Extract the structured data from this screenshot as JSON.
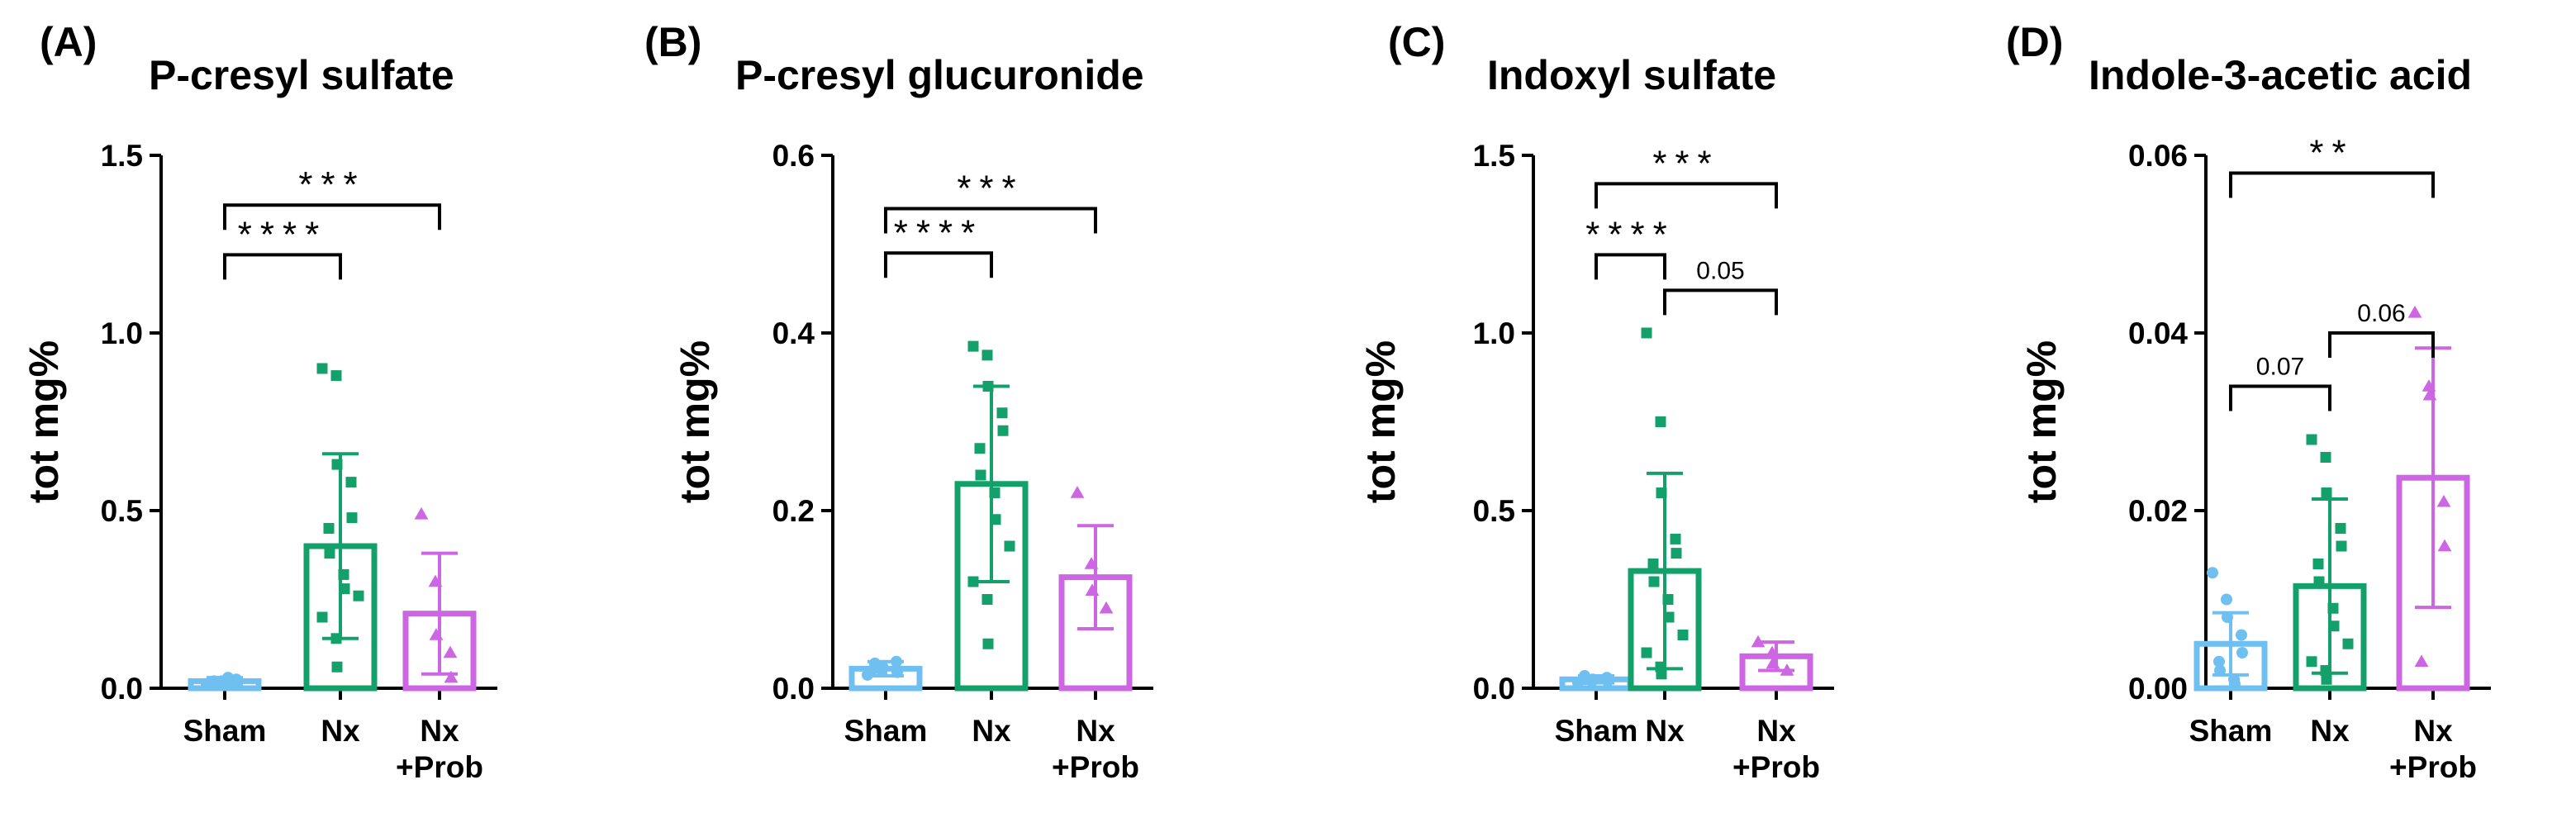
{
  "colors": {
    "sham": "#6fbff0",
    "nx": "#14a06a",
    "prob": "#cc66e3",
    "axis": "#000000"
  },
  "chart_data": [
    {
      "type": "bar",
      "panel": "(A)",
      "title": "P-cresyl sulfate",
      "ylabel": "tot mg%",
      "xlabel": "",
      "ylim": [
        0,
        1.5
      ],
      "yticks": [
        "0.0",
        "0.5",
        "1.0",
        "1.5"
      ],
      "ytick_values": [
        0,
        0.5,
        1.0,
        1.5
      ],
      "categories": [
        [
          "Sham"
        ],
        [
          "Nx"
        ],
        [
          "Nx",
          "+Prob"
        ]
      ],
      "marker_shapes": [
        "circle",
        "square",
        "triangle"
      ],
      "means": [
        0.02,
        0.4,
        0.21
      ],
      "sd": [
        0.01,
        0.26,
        0.17
      ],
      "points": [
        [
          0.01,
          0.015,
          0.02,
          0.02,
          0.025,
          0.015,
          0.02,
          0.03,
          0.01
        ],
        [
          0.9,
          0.88,
          0.63,
          0.58,
          0.48,
          0.45,
          0.38,
          0.32,
          0.28,
          0.26,
          0.2,
          0.14,
          0.06
        ],
        [
          0.49,
          0.3,
          0.15,
          0.1,
          0.03
        ]
      ],
      "significance": [
        {
          "from": 0,
          "to": 1,
          "label": "****",
          "y": 1.22
        },
        {
          "from": 0,
          "to": 2,
          "label": "***",
          "y": 1.36
        }
      ]
    },
    {
      "type": "bar",
      "panel": "(B)",
      "title": "P-cresyl glucuronide",
      "ylabel": "tot mg%",
      "xlabel": "",
      "ylim": [
        0,
        0.6
      ],
      "yticks": [
        "0.0",
        "0.2",
        "0.4",
        "0.6"
      ],
      "ytick_values": [
        0,
        0.2,
        0.4,
        0.6
      ],
      "categories": [
        [
          "Sham"
        ],
        [
          "Nx"
        ],
        [
          "Nx",
          "+Prob"
        ]
      ],
      "marker_shapes": [
        "circle",
        "square",
        "triangle"
      ],
      "means": [
        0.022,
        0.23,
        0.125
      ],
      "sd": [
        0.008,
        0.11,
        0.058
      ],
      "points": [
        [
          0.015,
          0.02,
          0.025,
          0.03,
          0.018,
          0.022,
          0.028
        ],
        [
          0.385,
          0.375,
          0.34,
          0.31,
          0.29,
          0.27,
          0.24,
          0.22,
          0.19,
          0.16,
          0.12,
          0.1,
          0.05
        ],
        [
          0.22,
          0.14,
          0.11,
          0.09
        ]
      ],
      "significance": [
        {
          "from": 0,
          "to": 1,
          "label": "****",
          "y": 0.49
        },
        {
          "from": 0,
          "to": 2,
          "label": "***",
          "y": 0.54
        }
      ]
    },
    {
      "type": "bar",
      "panel": "(C)",
      "title": "Indoxyl sulfate",
      "ylabel": "tot mg%",
      "xlabel": "",
      "ylim": [
        0,
        1.5
      ],
      "yticks": [
        "0.0",
        "0.5",
        "1.0",
        "1.5"
      ],
      "ytick_values": [
        0,
        0.5,
        1.0,
        1.5
      ],
      "categories": [
        [
          "Sham"
        ],
        [
          "Nx"
        ],
        [
          "Nx",
          "+Prob"
        ]
      ],
      "marker_shapes": [
        "circle",
        "square",
        "triangle"
      ],
      "means": [
        0.025,
        0.33,
        0.09
      ],
      "sd": [
        0.01,
        0.275,
        0.04
      ],
      "points": [
        [
          0.015,
          0.02,
          0.025,
          0.03,
          0.02,
          0.035,
          0.025
        ],
        [
          1.0,
          0.75,
          0.55,
          0.42,
          0.38,
          0.35,
          0.3,
          0.25,
          0.2,
          0.15,
          0.1,
          0.06,
          0.04
        ],
        [
          0.13,
          0.1,
          0.07,
          0.05
        ]
      ],
      "significance": [
        {
          "from": 0,
          "to": 1,
          "label": "****",
          "y": 1.22
        },
        {
          "from": 1,
          "to": 2,
          "label": "0.05",
          "y": 1.12
        },
        {
          "from": 0,
          "to": 2,
          "label": "***",
          "y": 1.42
        }
      ]
    },
    {
      "type": "bar",
      "panel": "(D)",
      "title": "Indole-3-acetic acid",
      "ylabel": "tot mg%",
      "xlabel": "",
      "ylim": [
        0,
        0.06
      ],
      "yticks": [
        "0.00",
        "0.02",
        "0.04",
        "0.06"
      ],
      "ytick_values": [
        0,
        0.02,
        0.04,
        0.06
      ],
      "categories": [
        [
          "Sham"
        ],
        [
          "Nx"
        ],
        [
          "Nx",
          "+Prob"
        ]
      ],
      "marker_shapes": [
        "circle",
        "square",
        "triangle"
      ],
      "means": [
        0.005,
        0.0115,
        0.0237
      ],
      "sd": [
        0.0035,
        0.0098,
        0.0146
      ],
      "points": [
        [
          0.013,
          0.01,
          0.008,
          0.006,
          0.004,
          0.003,
          0.002,
          0.001,
          0.0005
        ],
        [
          0.028,
          0.026,
          0.022,
          0.018,
          0.016,
          0.014,
          0.012,
          0.009,
          0.007,
          0.005,
          0.003,
          0.002,
          0.001
        ],
        [
          0.0423,
          0.034,
          0.033,
          0.021,
          0.016,
          0.003
        ]
      ],
      "significance": [
        {
          "from": 0,
          "to": 1,
          "label": "0.07",
          "y": 0.034
        },
        {
          "from": 1,
          "to": 2,
          "label": "0.06",
          "y": 0.04
        },
        {
          "from": 0,
          "to": 2,
          "label": "**",
          "y": 0.058
        }
      ]
    }
  ]
}
